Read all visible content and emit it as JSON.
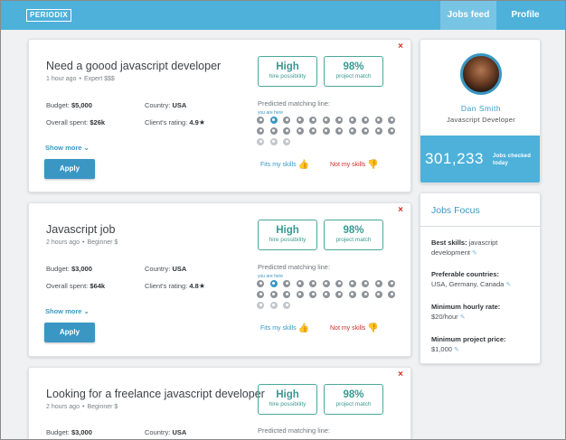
{
  "nav": {
    "logo": "PERIODIX",
    "tabs": [
      {
        "label": "Jobs feed",
        "active": true
      },
      {
        "label": "Profile",
        "active": false
      }
    ]
  },
  "jobs": [
    {
      "title": "Need a goood javascript developer",
      "posted": "1 hour ago",
      "level": "Expert $$$",
      "budget_label": "Budget:",
      "budget": "$5,000",
      "spent_label": "Overall spent:",
      "spent": "$26k",
      "country_label": "Country:",
      "country": "USA",
      "rating_label": "Client's rating:",
      "rating": "4.9",
      "possibility": "High",
      "possibility_label": "hire possibility",
      "match": "98%",
      "match_label": "project match",
      "pred_label": "Predicted matching line:",
      "you_label": "you are here",
      "show_more": "Show more",
      "apply": "Apply",
      "fits": "Fits my skills",
      "not_fits": "Not my skills",
      "close": "×"
    },
    {
      "title": "Javascript job",
      "posted": "2 hours ago",
      "level": "Beginner $",
      "budget_label": "Budget:",
      "budget": "$3,000",
      "spent_label": "Overall spent:",
      "spent": "$64k",
      "country_label": "Country:",
      "country": "USA",
      "rating_label": "Client's rating:",
      "rating": "4.8",
      "possibility": "High",
      "possibility_label": "hire possibility",
      "match": "98%",
      "match_label": "project match",
      "pred_label": "Predicted matching line:",
      "you_label": "you are here",
      "show_more": "Show more",
      "apply": "Apply",
      "fits": "Fits my skills",
      "not_fits": "Not my skills",
      "close": "×"
    },
    {
      "title": "Looking for a freelance javascript developer",
      "posted": "2 hours ago",
      "level": "Beginner $",
      "budget_label": "Budget:",
      "budget": "$3,000",
      "country_label": "Country:",
      "country": "USA",
      "possibility": "High",
      "possibility_label": "hire possibility",
      "match": "98%",
      "match_label": "project match",
      "pred_label": "Predicted matching line:",
      "close": "×"
    }
  ],
  "profile": {
    "name": "Dan Smith",
    "role": "Javascript Developer",
    "jobs_checked": "301,233",
    "jobs_checked_label": "Jobs checked today"
  },
  "focus": {
    "title": "Jobs Focus",
    "items": [
      {
        "label": "Best skills:",
        "value": "javascript development"
      },
      {
        "label": "Preferable countries:",
        "value": "USA, Germany, Canada"
      },
      {
        "label": "Minimum hourly rate:",
        "value": "$20/hour"
      },
      {
        "label": "Minimum project price:",
        "value": "$1,000"
      }
    ]
  },
  "colors": {
    "brand": "#4db1da",
    "accent": "#3a97c4",
    "teal": "#3a9a90",
    "danger": "#d0312d"
  }
}
